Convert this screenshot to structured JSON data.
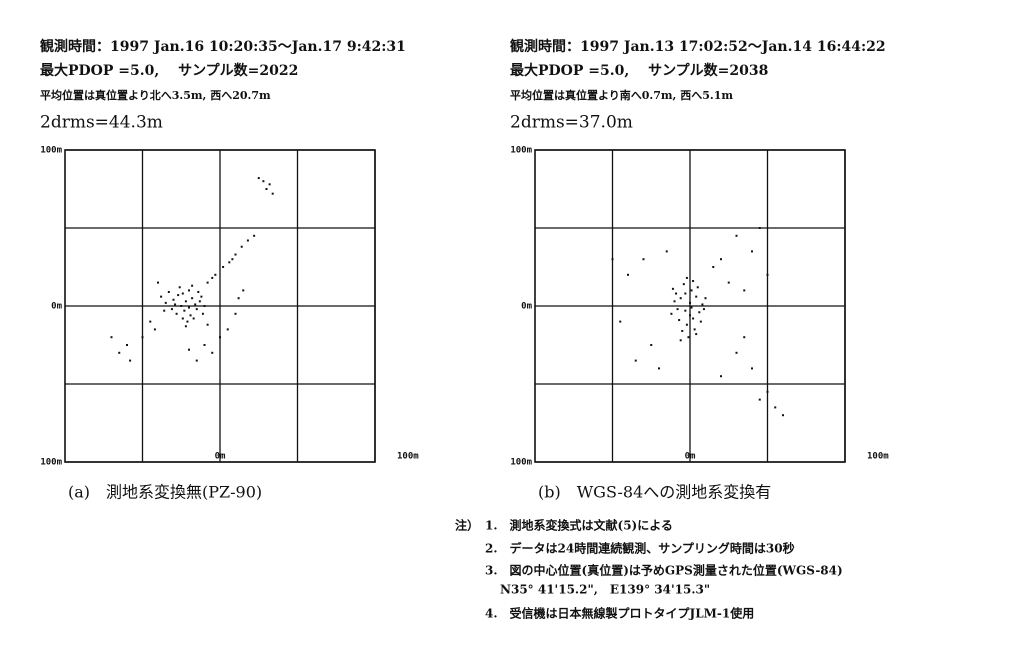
{
  "chart_data": [
    {
      "type": "scatter",
      "header_lines": [
        "観測時間：1997 Jan.16 10:20:35～Jan.17 9:42:31",
        "最大PDOP =5.0,　 サンプル数=2022",
        "平均位置は真位置より北へ3.5m, 西へ20.7m",
        "2drms=44.3m"
      ],
      "caption": "(a)　測地系変換無(PZ-90)",
      "color": "#111111",
      "xlim": [
        -100,
        100
      ],
      "ylim": [
        -100,
        100
      ],
      "xticks": [
        {
          "value": -50,
          "label": null
        },
        {
          "value": 0,
          "label": "0m"
        },
        {
          "value": 50,
          "label": null
        },
        {
          "value": 100,
          "label": "100m"
        }
      ],
      "yticks": [
        {
          "value": 100,
          "label": "100m"
        },
        {
          "value": 50,
          "label": null
        },
        {
          "value": 0,
          "label": "0m"
        },
        {
          "value": -50,
          "label": null
        },
        {
          "value": -100,
          "label": "100m"
        }
      ],
      "x": [
        -22,
        -18,
        -25,
        -30,
        -15,
        -20,
        -28,
        -12,
        -35,
        -24,
        -19,
        -26,
        -16,
        -31,
        -21,
        -10,
        -38,
        -23,
        -14,
        -27,
        -17,
        -33,
        -20,
        -11,
        -29,
        -24,
        -13,
        -36,
        -18,
        -22,
        -8,
        -3,
        2,
        6,
        10,
        14,
        18,
        -5,
        8,
        22,
        28,
        32,
        30,
        25,
        34,
        -10,
        -5,
        -15,
        0,
        -20,
        5,
        10,
        12,
        -60,
        -65,
        -58,
        -70,
        -50,
        -45,
        -40,
        -42,
        -8,
        15
      ],
      "y": [
        3,
        5,
        0,
        4,
        -2,
        10,
        -5,
        6,
        2,
        8,
        -6,
        12,
        1,
        -2,
        -10,
        0,
        6,
        -3,
        9,
        7,
        -8,
        9,
        -1,
        -5,
        1,
        -8,
        3,
        -3,
        13,
        -13,
        15,
        20,
        25,
        28,
        33,
        38,
        42,
        18,
        30,
        45,
        80,
        78,
        75,
        82,
        72,
        -25,
        -30,
        -35,
        -20,
        -28,
        -15,
        -5,
        5,
        -25,
        -30,
        -35,
        -20,
        -20,
        -10,
        15,
        -15,
        -12,
        10
      ]
    },
    {
      "type": "scatter",
      "header_lines": [
        "観測時間：1997 Jan.13 17:02:52～Jan.14 16:44:22",
        "最大PDOP =5.0,　 サンプル数=2038",
        "平均位置は真位置より南へ0.7m, 西へ5.1m",
        "2drms=37.0m"
      ],
      "caption": "(b)　WGS-84への測地系変換有",
      "color": "#111111",
      "xlim": [
        -100,
        100
      ],
      "ylim": [
        -100,
        100
      ],
      "xticks": [
        {
          "value": -50,
          "label": null
        },
        {
          "value": 0,
          "label": "0m"
        },
        {
          "value": 50,
          "label": null
        },
        {
          "value": 100,
          "label": "100m"
        }
      ],
      "yticks": [
        {
          "value": 100,
          "label": "100m"
        },
        {
          "value": 50,
          "label": null
        },
        {
          "value": 0,
          "label": "0m"
        },
        {
          "value": -50,
          "label": null
        },
        {
          "value": -100,
          "label": "100m"
        }
      ],
      "x": [
        -3,
        0,
        -6,
        2,
        -8,
        4,
        -2,
        1,
        -10,
        6,
        -4,
        3,
        -7,
        8,
        -1,
        5,
        -9,
        0,
        -5,
        7,
        -12,
        2,
        -3,
        9,
        -6,
        4,
        -11,
        1,
        10,
        -2,
        20,
        30,
        40,
        45,
        -40,
        -30,
        25,
        35,
        -45,
        -35,
        -20,
        30,
        40,
        50,
        55,
        60,
        45,
        20,
        15,
        -15,
        -50,
        -25,
        50,
        35
      ],
      "y": [
        -3,
        2,
        5,
        -8,
        -2,
        6,
        -12,
        10,
        3,
        -4,
        14,
        -15,
        -9,
        1,
        -20,
        12,
        8,
        -6,
        -16,
        -10,
        -5,
        16,
        8,
        -2,
        -22,
        -18,
        11,
        -1,
        5,
        18,
        30,
        45,
        35,
        50,
        20,
        30,
        15,
        10,
        -10,
        -35,
        -40,
        -30,
        -40,
        -55,
        -65,
        -70,
        -60,
        -45,
        25,
        35,
        30,
        -25,
        20,
        -20
      ]
    }
  ],
  "notes_label": "注）",
  "notes": [
    "1.　測地系変換式は文献(5)による",
    "2.　データは24時間連続観測、サンプリング時間は30秒",
    "3.　図の中心位置(真位置)は予めGPS測量された位置(WGS-84)",
    "N35° 41'15.2\",　E139° 34'15.3\"",
    "4.　受信機は日本無線製プロトタイプJLM-1使用"
  ]
}
